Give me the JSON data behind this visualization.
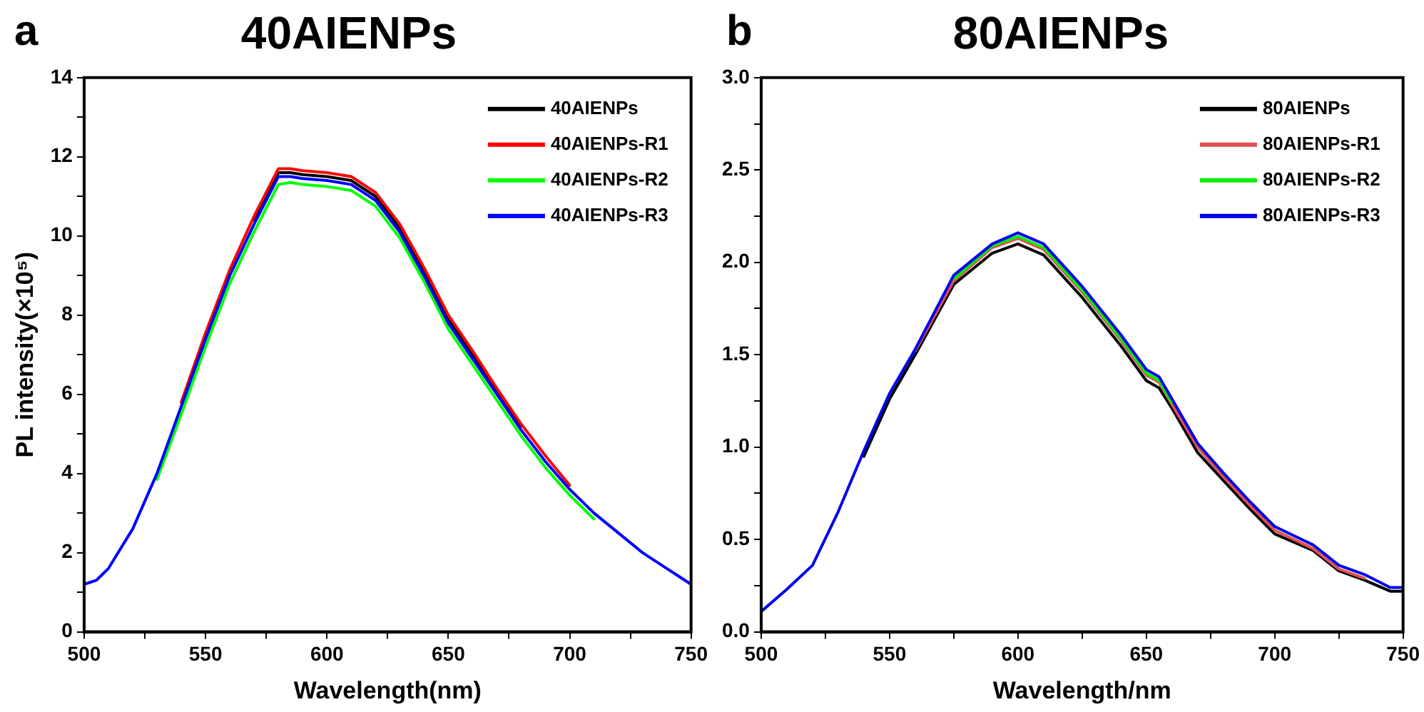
{
  "chart_data": [
    {
      "type": "line",
      "title": "40AIENPs",
      "xlabel": "Wavelength(nm)",
      "ylabel": "PL intensity(×10⁵)",
      "annotations": [
        "a"
      ],
      "legend": "top right",
      "marker": "none",
      "line_style": "solid",
      "xlim": [
        500,
        750
      ],
      "xticks": [
        500,
        {
          "value": 525,
          "label": null
        },
        550,
        {
          "value": 575,
          "label": null
        },
        600,
        {
          "value": 625,
          "label": null
        },
        650,
        {
          "value": 675,
          "label": null
        },
        700,
        {
          "value": 725,
          "label": null
        },
        750
      ],
      "ylim": [
        0,
        14
      ],
      "yticks": [
        0,
        {
          "value": 1,
          "label": null
        },
        2,
        {
          "value": 3,
          "label": null
        },
        4,
        {
          "value": 5,
          "label": null
        },
        6,
        {
          "value": 7,
          "label": null
        },
        8,
        {
          "value": 9,
          "label": null
        },
        10,
        {
          "value": 11,
          "label": null
        },
        12,
        {
          "value": 13,
          "label": null
        },
        14
      ],
      "x": [
        500,
        505,
        510,
        520,
        530,
        540,
        550,
        560,
        570,
        575,
        580,
        585,
        590,
        600,
        610,
        620,
        630,
        640,
        650,
        660,
        670,
        680,
        690,
        700,
        710,
        720,
        730,
        740,
        750
      ],
      "series": [
        {
          "name": "40AIENPs",
          "color": "#000000",
          "values": [
            null,
            null,
            null,
            null,
            null,
            null,
            null,
            null,
            10.4,
            11.0,
            11.6,
            11.6,
            11.55,
            11.5,
            11.4,
            11.0,
            10.2,
            9.1,
            7.9,
            7.0,
            6.1,
            5.2,
            null,
            null,
            null,
            null,
            null,
            null,
            null
          ]
        },
        {
          "name": "40AIENPs-R1",
          "color": "#ff0000",
          "values": [
            null,
            null,
            null,
            null,
            null,
            5.8,
            7.55,
            9.15,
            10.5,
            11.1,
            11.7,
            11.7,
            11.65,
            11.6,
            11.5,
            11.1,
            10.3,
            9.2,
            8.0,
            7.1,
            6.15,
            5.25,
            4.45,
            3.7,
            null,
            null,
            null,
            null,
            null
          ]
        },
        {
          "name": "40AIENPs-R2",
          "color": "#00ff00",
          "values": [
            null,
            null,
            null,
            null,
            3.85,
            5.5,
            7.2,
            8.8,
            10.1,
            10.7,
            11.3,
            11.35,
            11.3,
            11.25,
            11.15,
            10.75,
            9.95,
            8.85,
            7.65,
            6.75,
            5.85,
            4.95,
            4.15,
            3.45,
            2.85,
            null,
            null,
            null,
            null
          ]
        },
        {
          "name": "40AIENPs-R3",
          "color": "#0000ff",
          "values": [
            1.2,
            1.3,
            1.6,
            2.6,
            4.0,
            5.7,
            7.4,
            9.0,
            10.3,
            10.9,
            11.5,
            11.5,
            11.45,
            11.4,
            11.3,
            10.9,
            10.1,
            9.0,
            7.8,
            6.9,
            6.0,
            5.1,
            4.3,
            3.6,
            3.0,
            2.5,
            2.0,
            1.6,
            1.2
          ]
        }
      ]
    },
    {
      "type": "line",
      "title": "80AIENPs",
      "xlabel": "Wavelength/nm",
      "annotations": [
        "b"
      ],
      "legend": "top right",
      "marker": "none",
      "line_style": "solid",
      "xlim": [
        500,
        750
      ],
      "xticks": [
        500,
        {
          "value": 525,
          "label": null
        },
        550,
        {
          "value": 575,
          "label": null
        },
        600,
        {
          "value": 625,
          "label": null
        },
        650,
        {
          "value": 675,
          "label": null
        },
        700,
        {
          "value": 725,
          "label": null
        },
        750
      ],
      "ylim": [
        0,
        3
      ],
      "yticks": [
        {
          "value": 0,
          "label": "0.0"
        },
        {
          "value": 0.25,
          "label": null
        },
        {
          "value": 0.5,
          "label": "0.5"
        },
        {
          "value": 0.75,
          "label": null
        },
        {
          "value": 1,
          "label": "1.0"
        },
        {
          "value": 1.25,
          "label": null
        },
        {
          "value": 1.5,
          "label": "1.5"
        },
        {
          "value": 1.75,
          "label": null
        },
        {
          "value": 2,
          "label": "2.0"
        },
        {
          "value": 2.25,
          "label": null
        },
        {
          "value": 2.5,
          "label": "2.5"
        },
        {
          "value": 2.75,
          "label": null
        },
        {
          "value": 3,
          "label": "3.0"
        }
      ],
      "x": [
        500,
        510,
        520,
        530,
        540,
        550,
        560,
        575,
        590,
        600,
        610,
        625,
        640,
        650,
        655,
        660,
        670,
        680,
        690,
        700,
        715,
        725,
        735,
        745,
        750
      ],
      "series": [
        {
          "name": "80AIENPs",
          "color": "#000000",
          "values": [
            null,
            null,
            null,
            null,
            0.95,
            1.26,
            1.5,
            1.88,
            2.05,
            2.1,
            2.04,
            1.81,
            1.55,
            1.36,
            1.32,
            1.21,
            0.97,
            0.82,
            0.67,
            0.53,
            0.44,
            0.33,
            0.28,
            0.22,
            0.22
          ]
        },
        {
          "name": "80AIENPs-R1",
          "color": "#e05050",
          "values": [
            null,
            null,
            null,
            null,
            null,
            null,
            1.52,
            1.9,
            2.08,
            2.13,
            2.07,
            1.84,
            1.58,
            1.39,
            1.35,
            1.23,
            1.0,
            0.84,
            0.69,
            0.55,
            0.45,
            0.34,
            0.29,
            null,
            null
          ]
        },
        {
          "name": "80AIENPs-R2",
          "color": "#00ee00",
          "values": [
            null,
            null,
            null,
            null,
            null,
            null,
            null,
            1.91,
            2.09,
            2.14,
            2.08,
            1.85,
            1.59,
            1.4,
            1.36,
            1.24,
            null,
            null,
            null,
            null,
            null,
            null,
            null,
            null,
            null
          ]
        },
        {
          "name": "80AIENPs-R3",
          "color": "#0000ee",
          "values": [
            0.11,
            0.23,
            0.36,
            0.65,
            0.98,
            1.29,
            1.53,
            1.93,
            2.1,
            2.16,
            2.1,
            1.87,
            1.61,
            1.42,
            1.38,
            1.26,
            1.02,
            0.86,
            0.71,
            0.57,
            0.47,
            0.36,
            0.31,
            0.24,
            0.24
          ]
        }
      ]
    }
  ]
}
